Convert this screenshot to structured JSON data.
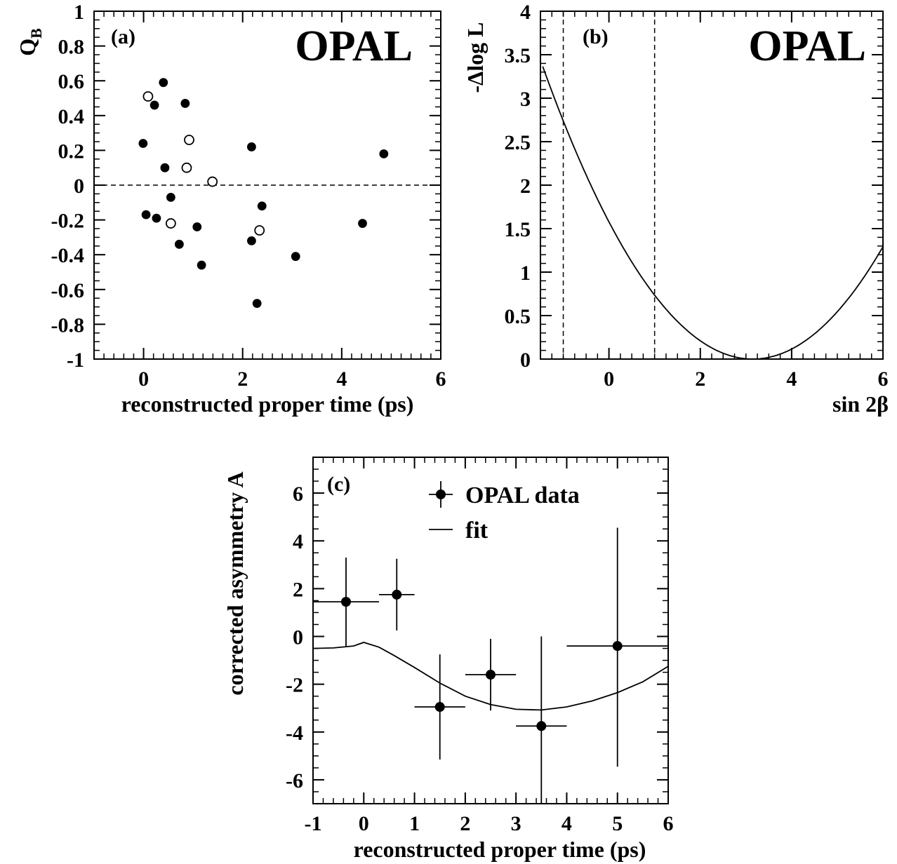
{
  "chart_data": [
    {
      "panel": "a",
      "type": "scatter",
      "panel_label": "(a)",
      "brand": "OPAL",
      "xlabel": "reconstructed proper time (ps)",
      "ylabel": "Q",
      "ylabel_sub": "B",
      "xlim": [
        -1,
        6
      ],
      "ylim": [
        -1,
        1
      ],
      "xticks": [
        0,
        2,
        4,
        6
      ],
      "xtick_labels": [
        "0",
        "2",
        "4",
        "6"
      ],
      "yticks": [
        -1,
        -0.8,
        -0.6,
        -0.4,
        -0.2,
        0,
        0.2,
        0.4,
        0.6,
        0.8,
        1
      ],
      "ytick_labels": [
        "-1",
        "-0.8",
        "-0.6",
        "-0.4",
        "-0.2",
        "0",
        "0.2",
        "0.4",
        "0.6",
        "0.8",
        "1"
      ],
      "reference_line": {
        "y": 0,
        "style": "dashed"
      },
      "series": [
        {
          "marker": "filled-circle",
          "points": [
            [
              0.4,
              0.59
            ],
            [
              0.22,
              0.46
            ],
            [
              0.84,
              0.47
            ],
            [
              -0.01,
              0.24
            ],
            [
              0.43,
              0.1
            ],
            [
              2.18,
              0.22
            ],
            [
              4.85,
              0.18
            ],
            [
              0.55,
              -0.07
            ],
            [
              0.05,
              -0.17
            ],
            [
              0.26,
              -0.19
            ],
            [
              1.08,
              -0.24
            ],
            [
              0.72,
              -0.34
            ],
            [
              2.39,
              -0.12
            ],
            [
              2.18,
              -0.32
            ],
            [
              1.17,
              -0.46
            ],
            [
              3.07,
              -0.41
            ],
            [
              4.42,
              -0.22
            ],
            [
              2.29,
              -0.68
            ]
          ]
        },
        {
          "marker": "open-circle",
          "points": [
            [
              0.09,
              0.51
            ],
            [
              0.92,
              0.26
            ],
            [
              0.87,
              0.1
            ],
            [
              1.39,
              0.02
            ],
            [
              0.55,
              -0.22
            ],
            [
              2.34,
              -0.26
            ]
          ]
        }
      ]
    },
    {
      "panel": "b",
      "type": "line",
      "panel_label": "(b)",
      "brand": "OPAL",
      "xlabel": "sin 2β",
      "ylabel": "-Δlog L",
      "xlim": [
        -1.5,
        6
      ],
      "ylim": [
        0,
        4
      ],
      "xticks": [
        0,
        2,
        4,
        6
      ],
      "xtick_labels": [
        "0",
        "2",
        "4",
        "6"
      ],
      "yticks": [
        0,
        0.5,
        1,
        1.5,
        2,
        2.5,
        3,
        3.5,
        4
      ],
      "ytick_labels": [
        "0",
        "0.5",
        "1",
        "1.5",
        "2",
        "2.5",
        "3",
        "3.5",
        "4"
      ],
      "vertical_lines": [
        {
          "x": -1,
          "style": "dashed"
        },
        {
          "x": 1,
          "style": "dashed"
        }
      ],
      "curve": {
        "min_x": 3.15,
        "coeff": 0.159
      }
    },
    {
      "panel": "c",
      "type": "scatter",
      "panel_label": "(c)",
      "xlabel": "reconstructed proper time (ps)",
      "ylabel": "corrected asymmetry A",
      "xlim": [
        -1,
        6
      ],
      "ylim": [
        -7,
        7.5
      ],
      "xticks": [
        -1,
        0,
        1,
        2,
        3,
        4,
        5,
        6
      ],
      "xtick_labels": [
        "-1",
        "0",
        "1",
        "2",
        "3",
        "4",
        "5",
        "6"
      ],
      "yticks": [
        -6,
        -4,
        -2,
        0,
        2,
        4,
        6
      ],
      "ytick_labels": [
        "-6",
        "-4",
        "-2",
        "0",
        "2",
        "4",
        "6"
      ],
      "legend": [
        {
          "label": "OPAL data",
          "symbol": "point-with-errorbar"
        },
        {
          "label": "fit",
          "symbol": "line"
        }
      ],
      "series": [
        {
          "name": "OPAL data",
          "points": [
            {
              "x": -0.35,
              "y": 1.45,
              "xerr": [
                0.65,
                0.65
              ],
              "yerr": [
                1.9,
                1.85
              ]
            },
            {
              "x": 0.65,
              "y": 1.75,
              "xerr": [
                0.35,
                0.35
              ],
              "yerr": [
                1.5,
                1.5
              ]
            },
            {
              "x": 1.5,
              "y": -2.95,
              "xerr": [
                0.5,
                0.5
              ],
              "yerr": [
                2.2,
                2.2
              ]
            },
            {
              "x": 2.5,
              "y": -1.6,
              "xerr": [
                0.5,
                0.5
              ],
              "yerr": [
                1.5,
                1.5
              ]
            },
            {
              "x": 3.5,
              "y": -3.75,
              "xerr": [
                0.5,
                0.5
              ],
              "yerr": [
                3.75,
                3.75
              ]
            },
            {
              "x": 5.0,
              "y": -0.4,
              "xerr": [
                1.0,
                1.0
              ],
              "yerr": [
                5.05,
                4.95
              ]
            }
          ]
        },
        {
          "name": "fit",
          "type": "line",
          "x": [
            -1,
            -0.6,
            -0.2,
            0.0,
            0.3,
            0.6,
            1.0,
            1.5,
            2.0,
            2.5,
            3.0,
            3.5,
            4.0,
            4.5,
            5.0,
            5.5,
            6.0
          ],
          "y": [
            -0.5,
            -0.48,
            -0.4,
            -0.25,
            -0.45,
            -0.8,
            -1.3,
            -1.95,
            -2.5,
            -2.85,
            -3.05,
            -3.08,
            -2.95,
            -2.7,
            -2.35,
            -1.9,
            -1.25
          ]
        }
      ]
    }
  ]
}
